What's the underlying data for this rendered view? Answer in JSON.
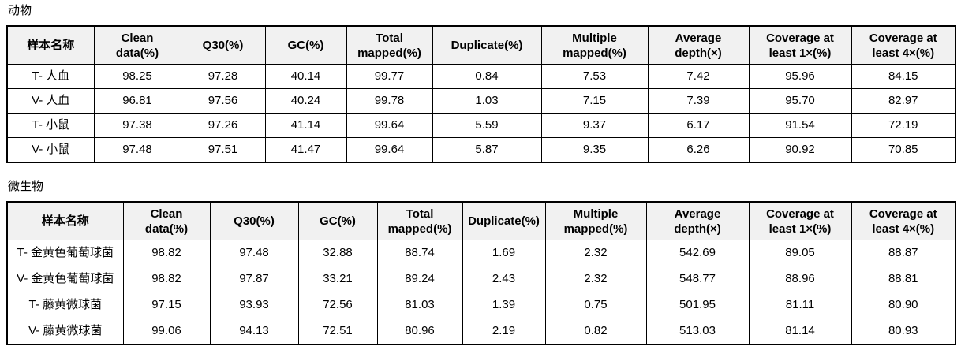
{
  "style": {
    "header_bg": "#f1f1f1",
    "border_color": "#000000",
    "text_color": "#000000"
  },
  "tables": [
    {
      "title": "动物",
      "headers": [
        "样本名称",
        "Clean\ndata(%)",
        "Q30(%)",
        "GC(%)",
        "Total\nmapped(%)",
        "Duplicate(%)",
        "Multiple\nmapped(%)",
        "Average\ndepth(×)",
        "Coverage at\nleast 1×(%)",
        "Coverage at\nleast 4×(%)"
      ],
      "rows": [
        [
          "T- 人血",
          "98.25",
          "97.28",
          "40.14",
          "99.77",
          "0.84",
          "7.53",
          "7.42",
          "95.96",
          "84.15"
        ],
        [
          "V- 人血",
          "96.81",
          "97.56",
          "40.24",
          "99.78",
          "1.03",
          "7.15",
          "7.39",
          "95.70",
          "82.97"
        ],
        [
          "T- 小鼠",
          "97.38",
          "97.26",
          "41.14",
          "99.64",
          "5.59",
          "9.37",
          "6.17",
          "91.54",
          "72.19"
        ],
        [
          "V- 小鼠",
          "97.48",
          "97.51",
          "41.47",
          "99.64",
          "5.87",
          "9.35",
          "6.26",
          "90.92",
          "70.85"
        ]
      ]
    },
    {
      "title": "微生物",
      "headers": [
        "样本名称",
        "Clean\ndata(%)",
        "Q30(%)",
        "GC(%)",
        "Total\nmapped(%)",
        "Duplicate(%)",
        "Multiple\nmapped(%)",
        "Average\ndepth(×)",
        "Coverage at\nleast 1×(%)",
        "Coverage at\nleast 4×(%)"
      ],
      "rows": [
        [
          "T- 金黄色葡萄球菌",
          "98.82",
          "97.48",
          "32.88",
          "88.74",
          "1.69",
          "2.32",
          "542.69",
          "89.05",
          "88.87"
        ],
        [
          "V- 金黄色葡萄球菌",
          "98.82",
          "97.87",
          "33.21",
          "89.24",
          "2.43",
          "2.32",
          "548.77",
          "88.96",
          "88.81"
        ],
        [
          "T- 藤黄微球菌",
          "97.15",
          "93.93",
          "72.56",
          "81.03",
          "1.39",
          "0.75",
          "501.95",
          "81.11",
          "80.90"
        ],
        [
          "V- 藤黄微球菌",
          "99.06",
          "94.13",
          "72.51",
          "80.96",
          "2.19",
          "0.82",
          "513.03",
          "81.14",
          "80.93"
        ]
      ]
    }
  ]
}
